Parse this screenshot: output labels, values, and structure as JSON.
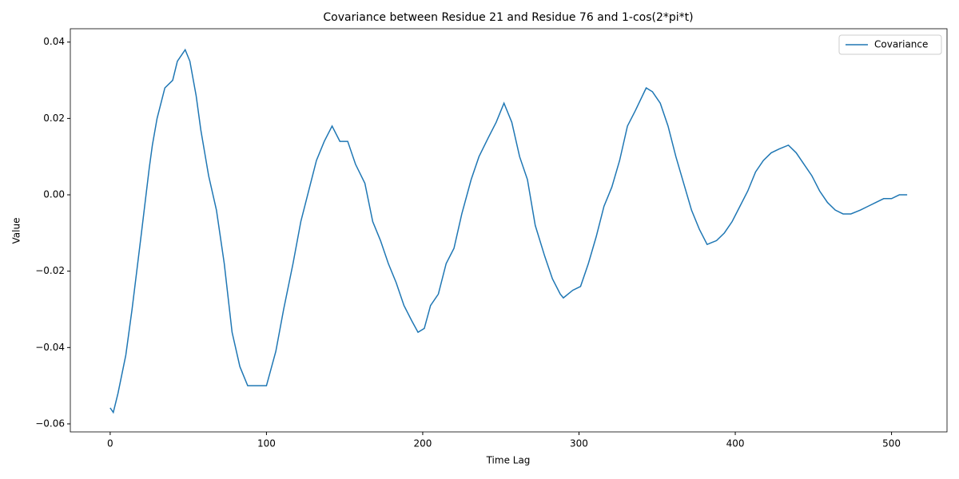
{
  "chart_data": {
    "type": "line",
    "title": "Covariance between Residue 21 and Residue 76 and 1-cos(2*pi*t)",
    "x_label": "Time Lag",
    "y_label": "Value",
    "x": [
      0,
      2,
      5,
      10,
      14,
      17,
      20,
      25,
      27,
      30,
      35,
      40,
      43,
      48,
      51,
      55,
      58,
      63,
      68,
      73,
      78,
      83,
      88,
      94,
      100,
      106,
      111,
      117,
      122,
      127,
      132,
      137,
      142,
      147,
      152,
      157,
      163,
      168,
      173,
      178,
      183,
      188,
      193,
      197,
      201,
      205,
      210,
      215,
      220,
      225,
      231,
      236,
      242,
      247,
      252,
      257,
      262,
      267,
      272,
      278,
      283,
      288,
      290,
      296,
      301,
      306,
      311,
      316,
      321,
      326,
      331,
      336,
      343,
      347,
      352,
      357,
      362,
      367,
      372,
      377,
      382,
      388,
      393,
      398,
      403,
      408,
      413,
      418,
      423,
      428,
      434,
      439,
      444,
      449,
      454,
      459,
      464,
      469,
      474,
      480,
      485,
      490,
      495,
      500,
      505,
      510
    ],
    "series": [
      {
        "name": "Covariance",
        "color": "#1f77b4",
        "values": [
          -0.0558,
          -0.057,
          -0.052,
          -0.042,
          -0.03,
          -0.02,
          -0.01,
          0.007,
          0.013,
          0.02,
          0.028,
          0.03,
          0.035,
          0.038,
          0.035,
          0.026,
          0.017,
          0.005,
          -0.004,
          -0.018,
          -0.036,
          -0.045,
          -0.05,
          -0.05,
          -0.05,
          -0.041,
          -0.03,
          -0.018,
          -0.007,
          0.001,
          0.009,
          0.014,
          0.018,
          0.014,
          0.014,
          0.008,
          0.003,
          -0.007,
          -0.012,
          -0.018,
          -0.023,
          -0.029,
          -0.033,
          -0.036,
          -0.035,
          -0.029,
          -0.026,
          -0.018,
          -0.014,
          -0.005,
          0.004,
          0.01,
          0.015,
          0.019,
          0.024,
          0.019,
          0.01,
          0.004,
          -0.008,
          -0.016,
          -0.022,
          -0.026,
          -0.027,
          -0.025,
          -0.024,
          -0.018,
          -0.011,
          -0.003,
          0.002,
          0.009,
          0.018,
          0.022,
          0.028,
          0.027,
          0.024,
          0.018,
          0.01,
          0.003,
          -0.004,
          -0.009,
          -0.013,
          -0.012,
          -0.01,
          -0.007,
          -0.003,
          0.001,
          0.006,
          0.009,
          0.011,
          0.012,
          0.013,
          0.011,
          0.008,
          0.005,
          0.001,
          -0.002,
          -0.004,
          -0.005,
          -0.005,
          -0.004,
          -0.003,
          -0.002,
          -0.001,
          -0.001,
          0.0,
          0.0
        ]
      }
    ],
    "xlim": [
      -25.5,
      535.5
    ],
    "xticks": [
      0,
      100,
      200,
      300,
      400,
      500
    ],
    "ylim": [
      -0.0621,
      0.0435
    ],
    "yticks": [
      {
        "value": -0.06,
        "label": "−0.06"
      },
      {
        "value": -0.04,
        "label": "−0.04"
      },
      {
        "value": -0.02,
        "label": "−0.02"
      },
      {
        "value": 0,
        "label": "0.00"
      },
      0.02,
      0.04
    ],
    "legend": "upper right",
    "grid": false
  }
}
